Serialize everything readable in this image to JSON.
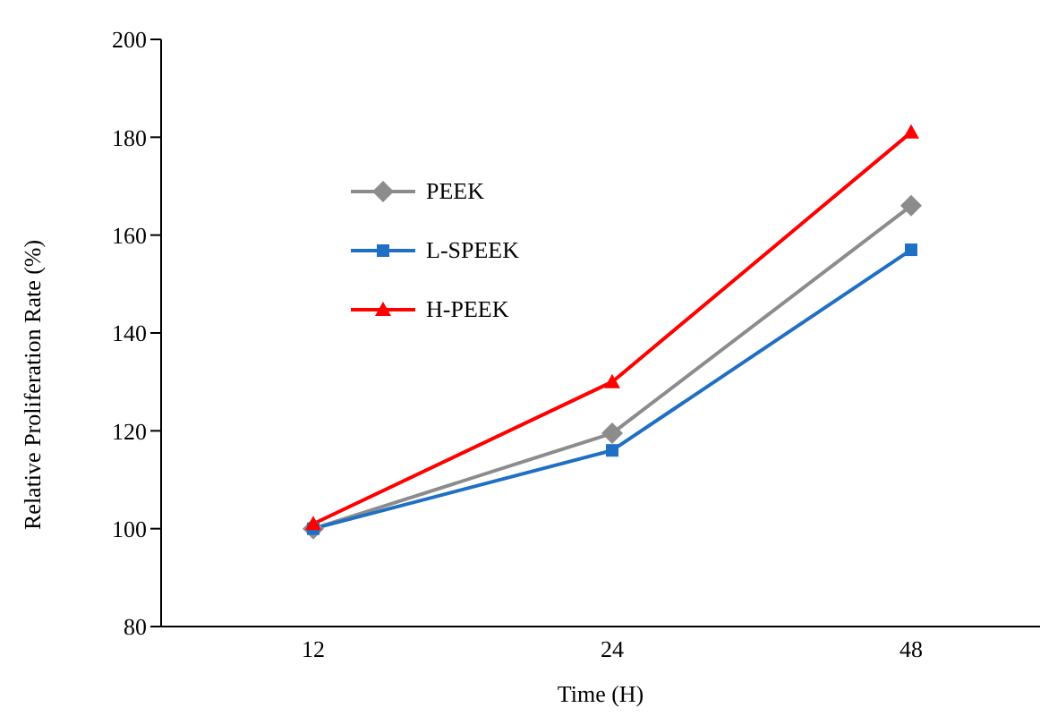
{
  "chart_data": {
    "type": "line",
    "xlabel": "Time  (H)",
    "ylabel": "Relative  Proliferation  Rate  (%)",
    "categories": [
      "12",
      "24",
      "48"
    ],
    "series": [
      {
        "name": "PEEK",
        "color": "#8c8c8c",
        "marker": "diamond",
        "values": [
          100,
          119.5,
          166
        ]
      },
      {
        "name": "L-SPEEK",
        "color": "#1f6fc5",
        "marker": "square",
        "values": [
          100,
          116,
          157
        ]
      },
      {
        "name": "H-PEEK",
        "color": "#ff0000",
        "marker": "triangle",
        "values": [
          101,
          130,
          181
        ]
      }
    ],
    "ylim": [
      80,
      200
    ],
    "yticks": [
      80,
      100,
      120,
      140,
      160,
      180,
      200
    ],
    "grid": false,
    "legend": "top left"
  }
}
